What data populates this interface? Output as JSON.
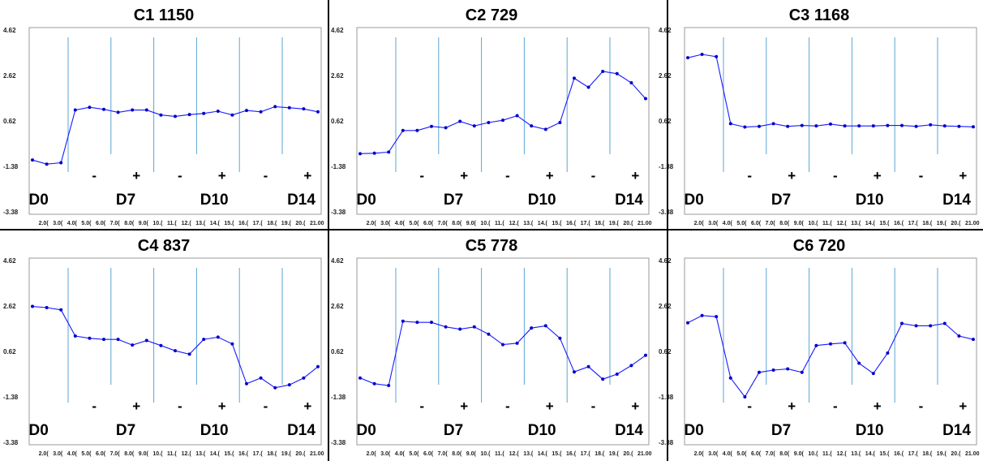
{
  "figure": {
    "y_ticks": [
      "4.62",
      "2.62",
      "0.62",
      "-1.38",
      "-3.38"
    ],
    "x_ticks": [
      "2.0(",
      "3.0(",
      "4.0(",
      "5.0(",
      "6.0(",
      "7.0(",
      "8.0(",
      "9.0(",
      "10.(",
      "11.(",
      "12.(",
      "13.(",
      "14.(",
      "15.(",
      "16.(",
      "17.(",
      "18.(",
      "19.(",
      "20.(",
      "21.00"
    ],
    "day_labels": [
      "D0",
      "D7",
      "D10",
      "D14"
    ],
    "signs": [
      "-",
      "+",
      "-",
      "+",
      "-",
      "+"
    ],
    "colors": {
      "line": "#1a1aff",
      "marker": "#0000cc",
      "divider": "#5aa6d6",
      "frame": "#000000"
    }
  },
  "chart_data": [
    {
      "type": "line",
      "title": "C1 1150",
      "ylim": [
        -3.38,
        4.62
      ],
      "x": [
        1,
        2,
        3,
        4,
        5,
        6,
        7,
        8,
        9,
        10,
        11,
        12,
        13,
        14,
        15,
        16,
        17,
        18,
        19,
        20,
        21
      ],
      "values": [
        -1.1,
        -1.28,
        -1.22,
        1.1,
        1.22,
        1.13,
        1.0,
        1.1,
        1.1,
        0.88,
        0.82,
        0.9,
        0.95,
        1.05,
        0.88,
        1.08,
        1.02,
        1.25,
        1.2,
        1.15,
        1.02
      ]
    },
    {
      "type": "line",
      "title": "C2 729",
      "ylim": [
        -3.38,
        4.62
      ],
      "x": [
        1,
        2,
        3,
        4,
        5,
        6,
        7,
        8,
        9,
        10,
        11,
        12,
        13,
        14,
        15,
        16,
        17,
        18,
        19,
        20,
        21
      ],
      "values": [
        -0.82,
        -0.8,
        -0.75,
        0.2,
        0.2,
        0.38,
        0.32,
        0.6,
        0.4,
        0.55,
        0.65,
        0.85,
        0.4,
        0.25,
        0.55,
        2.5,
        2.1,
        2.8,
        2.7,
        2.3,
        1.6
      ]
    },
    {
      "type": "line",
      "title": "C3 1168",
      "ylim": [
        -3.38,
        4.62
      ],
      "x": [
        1,
        2,
        3,
        4,
        5,
        6,
        7,
        8,
        9,
        10,
        11,
        12,
        13,
        14,
        15,
        16,
        17,
        18,
        19,
        20,
        21
      ],
      "values": [
        3.4,
        3.55,
        3.45,
        0.5,
        0.35,
        0.38,
        0.5,
        0.38,
        0.42,
        0.4,
        0.48,
        0.4,
        0.4,
        0.4,
        0.42,
        0.42,
        0.38,
        0.45,
        0.4,
        0.38,
        0.36
      ]
    },
    {
      "type": "line",
      "title": "C4 837",
      "ylim": [
        -3.38,
        4.62
      ],
      "x": [
        1,
        2,
        3,
        4,
        5,
        6,
        7,
        8,
        9,
        10,
        11,
        12,
        13,
        14,
        15,
        16,
        17,
        18,
        19,
        20,
        21
      ],
      "values": [
        2.6,
        2.55,
        2.45,
        1.3,
        1.2,
        1.15,
        1.15,
        0.9,
        1.1,
        0.88,
        0.65,
        0.5,
        1.15,
        1.25,
        0.95,
        -0.8,
        -0.55,
        -0.98,
        -0.85,
        -0.55,
        -0.05
      ]
    },
    {
      "type": "line",
      "title": "C5 778",
      "ylim": [
        -3.38,
        4.62
      ],
      "x": [
        1,
        2,
        3,
        4,
        5,
        6,
        7,
        8,
        9,
        10,
        11,
        12,
        13,
        14,
        15,
        16,
        17,
        18,
        19,
        20,
        21
      ],
      "values": [
        -0.55,
        -0.8,
        -0.88,
        1.95,
        1.9,
        1.9,
        1.7,
        1.6,
        1.7,
        1.38,
        0.92,
        0.98,
        1.65,
        1.75,
        1.2,
        -0.28,
        -0.05,
        -0.6,
        -0.38,
        0.0,
        0.45
      ]
    },
    {
      "type": "line",
      "title": "C6 720",
      "ylim": [
        -3.38,
        4.62
      ],
      "x": [
        1,
        2,
        3,
        4,
        5,
        6,
        7,
        8,
        9,
        10,
        11,
        12,
        13,
        14,
        15,
        16,
        17,
        18,
        19,
        20,
        21
      ],
      "values": [
        1.88,
        2.2,
        2.15,
        -0.55,
        -1.38,
        -0.3,
        -0.2,
        -0.15,
        -0.3,
        0.88,
        0.95,
        1.0,
        0.1,
        -0.35,
        0.55,
        1.85,
        1.75,
        1.75,
        1.85,
        1.3,
        1.15
      ]
    }
  ]
}
